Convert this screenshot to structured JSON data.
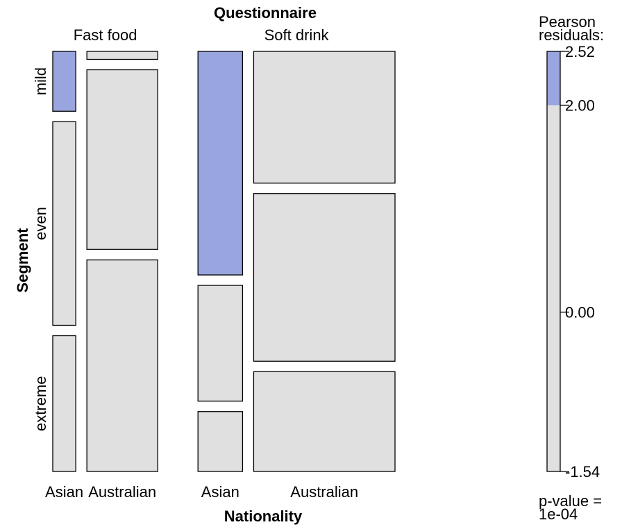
{
  "chart_data": {
    "type": "mosaic",
    "title": "Questionnaire",
    "xlabel": "Nationality",
    "ylabel": "Segment",
    "questionnaires": [
      "Fast food",
      "Soft drink"
    ],
    "nationalities": [
      "Asian",
      "Australian"
    ],
    "segments": [
      "mild",
      "even",
      "extreme"
    ],
    "column_widths": {
      "Fast food": {
        "Asian": 0.064,
        "Australian": 0.197
      },
      "Soft drink": {
        "Asian": 0.124,
        "Australian": 0.393
      }
    },
    "segment_fractions": {
      "Fast food": {
        "Asian": {
          "mild": 0.15,
          "even": 0.51,
          "extreme": 0.34
        },
        "Australian": {
          "mild": 0.02,
          "even": 0.45,
          "extreme": 0.53
        }
      },
      "Soft drink": {
        "Asian": {
          "mild": 0.56,
          "even": 0.29,
          "extreme": 0.15
        },
        "Australian": {
          "mild": 0.33,
          "even": 0.42,
          "extreme": 0.25
        }
      }
    },
    "shaded_cells": [
      {
        "questionnaire": "Fast food",
        "nationality": "Asian",
        "segment": "mild"
      },
      {
        "questionnaire": "Soft drink",
        "nationality": "Asian",
        "segment": "mild"
      }
    ],
    "colors": {
      "positive_fill": "#98a5df",
      "neutral_fill": "#e0e0e0",
      "border": "#000000"
    },
    "legend": {
      "title_line1": "Pearson",
      "title_line2": "residuals:",
      "min": -1.54,
      "max": 2.52,
      "threshold": 2.0,
      "tick_values": [
        2.52,
        2.0,
        0.0,
        -1.54
      ],
      "tick_labels": [
        "2.52",
        "2.00",
        "0.00",
        "-1.54"
      ],
      "pvalue_line1": "p-value =",
      "pvalue_line2": "1e-04"
    }
  }
}
